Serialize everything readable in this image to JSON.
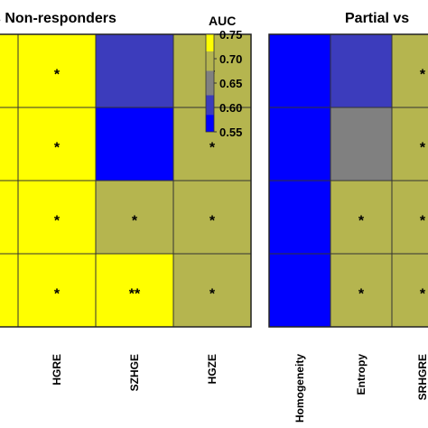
{
  "chart_data": [
    {
      "type": "heatmap",
      "title": "s Non-responders",
      "columns": [
        "",
        "HGRE",
        "SZHGE",
        "HGZE"
      ],
      "values": [
        [
          0.75,
          0.75,
          0.61,
          0.7
        ],
        [
          0.75,
          0.75,
          0.55,
          0.7
        ],
        [
          0.75,
          0.75,
          0.7,
          0.7
        ],
        [
          0.75,
          0.75,
          0.75,
          0.7
        ]
      ],
      "annotations": [
        [
          "",
          "*",
          "",
          "*"
        ],
        [
          "",
          "*",
          "",
          "*"
        ],
        [
          "",
          "*",
          "*",
          "*"
        ],
        [
          "",
          "*",
          "**",
          "*"
        ]
      ]
    },
    {
      "type": "heatmap",
      "title": "Partial vs",
      "columns": [
        "Homogeneity",
        "Entropy",
        "SRHGRE"
      ],
      "values": [
        [
          0.55,
          0.61,
          0.7
        ],
        [
          0.55,
          0.65,
          0.7
        ],
        [
          0.55,
          0.7,
          0.7
        ],
        [
          0.55,
          0.7,
          0.7
        ]
      ],
      "annotations": [
        [
          "",
          "",
          "*"
        ],
        [
          "",
          "",
          "*"
        ],
        [
          "",
          "*",
          "*"
        ],
        [
          "",
          "*",
          "*"
        ]
      ]
    }
  ],
  "colorbar": {
    "title": "AUC",
    "ticks": [
      "0.75",
      "0.70",
      "0.65",
      "0.60",
      "0.55"
    ],
    "tick_values": [
      0.75,
      0.7,
      0.65,
      0.6,
      0.55
    ],
    "colors": [
      "#ffff00",
      "#b5b54f",
      "#808080",
      "#3c3cbc",
      "#0000ff"
    ]
  },
  "colors": {
    "0.75": "#ffff00",
    "0.70": "#b5b54f",
    "0.65": "#808080",
    "0.61": "#3c3cbc",
    "0.55": "#0000ff"
  }
}
